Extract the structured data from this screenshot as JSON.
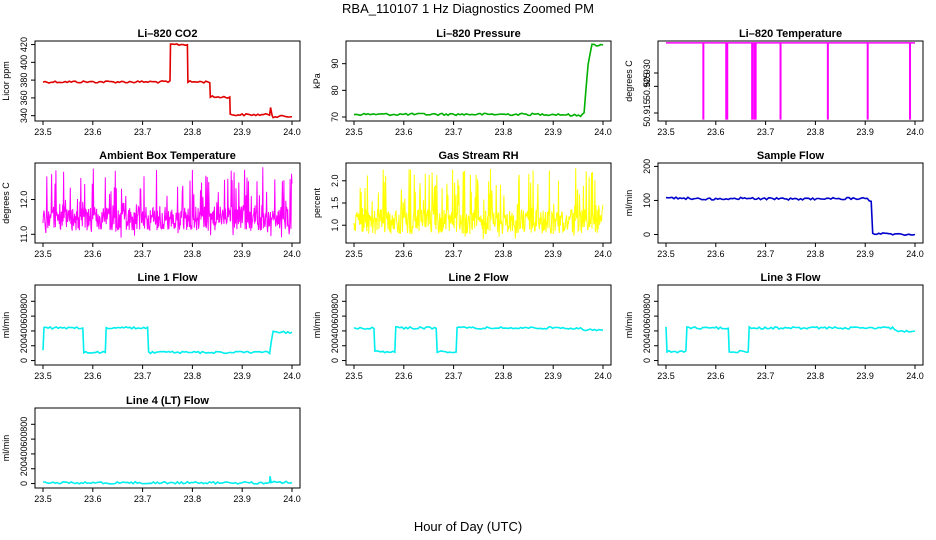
{
  "figure": {
    "title": "RBA_110107  1 Hz Diagnostics Zoomed PM",
    "xlabel": "Hour of Day (UTC)"
  },
  "chart_data": [
    {
      "type": "line",
      "title": "Li–820 CO2",
      "ylabel": "Licor ppm",
      "color": "#e00000",
      "xlim": [
        23.5,
        24.0
      ],
      "ylim": [
        334,
        424
      ],
      "xticks": [
        "23.5",
        "23.6",
        "23.7",
        "23.8",
        "23.9",
        "24.0"
      ],
      "yticks": [
        "340",
        "360",
        "380",
        "400",
        "420"
      ],
      "x": [
        23.5,
        23.755,
        23.756,
        23.79,
        23.791,
        23.835,
        23.836,
        23.875,
        23.876,
        23.955,
        23.957,
        23.96,
        23.962,
        24.0
      ],
      "y": [
        378,
        378,
        420,
        420,
        378,
        378,
        361,
        361,
        341,
        341,
        350,
        341,
        339,
        339
      ]
    },
    {
      "type": "line",
      "title": "Li–820 Pressure",
      "ylabel": "kPa",
      "color": "#00b000",
      "xlim": [
        23.5,
        24.0
      ],
      "ylim": [
        68.5,
        98.5
      ],
      "xticks": [
        "23.5",
        "23.6",
        "23.7",
        "23.8",
        "23.9",
        "24.0"
      ],
      "yticks": [
        "70",
        "80",
        "90"
      ],
      "x": [
        23.5,
        23.91,
        23.955,
        23.962,
        23.97,
        23.978,
        24.0
      ],
      "y": [
        71,
        71,
        70.5,
        72,
        90,
        97,
        97
      ]
    },
    {
      "type": "line",
      "title": "Li–820 Temperature",
      "ylabel": "degrees C",
      "color": "#ff00ff",
      "xlim": [
        23.5,
        24.0
      ],
      "ylim": [
        50.912,
        50.942
      ],
      "xticks": [
        "23.5",
        "23.6",
        "23.7",
        "23.8",
        "23.9",
        "24.0"
      ],
      "yticks": [
        "50.915",
        "50.925",
        "50.930"
      ],
      "baseline": 50.9413,
      "drops": [
        23.575,
        23.621,
        23.623,
        23.673,
        23.677,
        23.68,
        23.73,
        23.825,
        23.905,
        23.99
      ],
      "drop_value": 50.9125
    },
    {
      "type": "line",
      "title": "Ambient Box Temperature",
      "ylabel": "degrees C",
      "color": "#ff00ff",
      "xlim": [
        23.5,
        24.0
      ],
      "ylim": [
        10.75,
        13.05
      ],
      "xticks": [
        "23.5",
        "23.6",
        "23.7",
        "23.8",
        "23.9",
        "24.0"
      ],
      "yticks": [
        "11.0",
        "12.0"
      ],
      "noise": {
        "center": 11.45,
        "spread": 0.35,
        "min": 10.9,
        "max": 12.95
      }
    },
    {
      "type": "line",
      "title": "Gas Stream RH",
      "ylabel": "percent",
      "color": "#ffff00",
      "xlim": [
        23.5,
        24.0
      ],
      "ylim": [
        0.6,
        2.4
      ],
      "xticks": [
        "23.5",
        "23.6",
        "23.7",
        "23.8",
        "23.9",
        "24.0"
      ],
      "yticks": [
        "1.0",
        "1.5",
        "2.0"
      ],
      "noise": {
        "center": 1.08,
        "spread": 0.28,
        "min": 0.65,
        "max": 2.3
      }
    },
    {
      "type": "line",
      "title": "Sample Flow",
      "ylabel": "ml/min",
      "color": "#0000cc",
      "xlim": [
        23.5,
        24.0
      ],
      "ylim": [
        -25,
        210
      ],
      "xticks": [
        "23.5",
        "23.6",
        "23.7",
        "23.8",
        "23.9",
        "24.0"
      ],
      "yticks": [
        "0",
        "100",
        "200"
      ],
      "x": [
        23.5,
        23.6,
        23.65,
        23.75,
        23.9,
        23.912,
        23.915,
        24.0
      ],
      "y": [
        108,
        104,
        106,
        104,
        106,
        100,
        2,
        0
      ]
    },
    {
      "type": "line",
      "title": "Line 1 Flow",
      "ylabel": "ml/min",
      "color": "#00eeee",
      "xlim": [
        23.5,
        24.0
      ],
      "ylim": [
        -60,
        1020
      ],
      "xticks": [
        "23.5",
        "23.6",
        "23.7",
        "23.8",
        "23.9",
        "24.0"
      ],
      "yticks": [
        "0",
        "200",
        "400",
        "600",
        "800"
      ],
      "x": [
        23.5,
        23.502,
        23.58,
        23.582,
        23.625,
        23.627,
        23.71,
        23.712,
        23.955,
        23.962,
        24.0
      ],
      "y": [
        150,
        440,
        440,
        110,
        110,
        440,
        440,
        110,
        110,
        380,
        380
      ]
    },
    {
      "type": "line",
      "title": "Line 2 Flow",
      "ylabel": "ml/min",
      "color": "#00eeee",
      "xlim": [
        23.5,
        24.0
      ],
      "ylim": [
        -60,
        1020
      ],
      "xticks": [
        "23.5",
        "23.6",
        "23.7",
        "23.8",
        "23.9",
        "24.0"
      ],
      "yticks": [
        "0",
        "200",
        "400",
        "600",
        "800"
      ],
      "x": [
        23.5,
        23.54,
        23.542,
        23.582,
        23.584,
        23.665,
        23.667,
        23.705,
        23.707,
        23.955,
        23.962,
        24.0
      ],
      "y": [
        440,
        440,
        120,
        120,
        440,
        440,
        120,
        120,
        440,
        440,
        410,
        410
      ]
    },
    {
      "type": "line",
      "title": "Line 3 Flow",
      "ylabel": "ml/min",
      "color": "#00eeee",
      "xlim": [
        23.5,
        24.0
      ],
      "ylim": [
        -60,
        1020
      ],
      "xticks": [
        "23.5",
        "23.6",
        "23.7",
        "23.8",
        "23.9",
        "24.0"
      ],
      "yticks": [
        "0",
        "200",
        "400",
        "600",
        "800"
      ],
      "x": [
        23.5,
        23.502,
        23.54,
        23.542,
        23.625,
        23.627,
        23.665,
        23.667,
        23.955,
        23.962,
        24.0
      ],
      "y": [
        440,
        120,
        120,
        440,
        440,
        120,
        120,
        440,
        440,
        400,
        400
      ]
    },
    {
      "type": "line",
      "title": "Line 4 (LT) Flow",
      "ylabel": "ml/min",
      "color": "#00eeee",
      "xlim": [
        23.5,
        24.0
      ],
      "ylim": [
        -60,
        1020
      ],
      "xticks": [
        "23.5",
        "23.6",
        "23.7",
        "23.8",
        "23.9",
        "24.0"
      ],
      "yticks": [
        "0",
        "200",
        "400",
        "600",
        "800"
      ],
      "x": [
        23.5,
        23.955,
        23.956,
        23.958,
        23.96,
        24.0
      ],
      "y": [
        10,
        10,
        90,
        10,
        15,
        15
      ]
    }
  ]
}
